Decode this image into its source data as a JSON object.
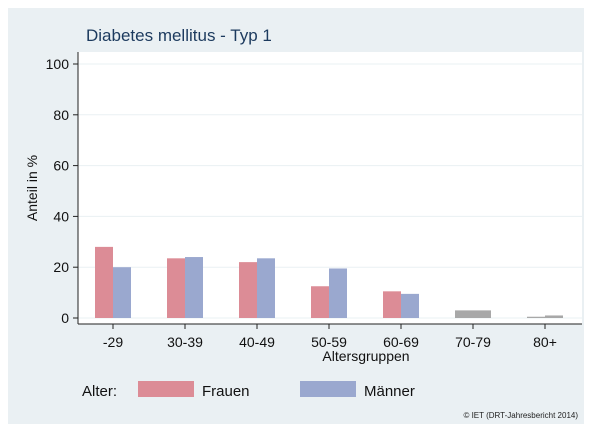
{
  "chart_data": {
    "type": "bar",
    "title": "Diabetes mellitus - Typ 1",
    "xlabel": "Altersgruppen",
    "ylabel": "Anteil in %",
    "ylim": [
      0,
      100
    ],
    "yticks": [
      0,
      20,
      40,
      60,
      80,
      100
    ],
    "grid": true,
    "categories": [
      "-29",
      "30-39",
      "40-49",
      "50-59",
      "60-69",
      "70-79",
      "80+"
    ],
    "series": [
      {
        "name": "Frauen",
        "color": "#dc8c96",
        "values": [
          28,
          23.5,
          22,
          12.5,
          10.5,
          3,
          0.5
        ]
      },
      {
        "name": "Männer",
        "color": "#9aa8cf",
        "values": [
          20,
          24,
          23.5,
          19.5,
          9.5,
          3,
          1
        ]
      }
    ],
    "grey_color": "#a8a8a8",
    "legend": {
      "title": "Alter:",
      "position": "bottom"
    },
    "credit": "© IET (DRT-Jahresbericht 2014)"
  }
}
